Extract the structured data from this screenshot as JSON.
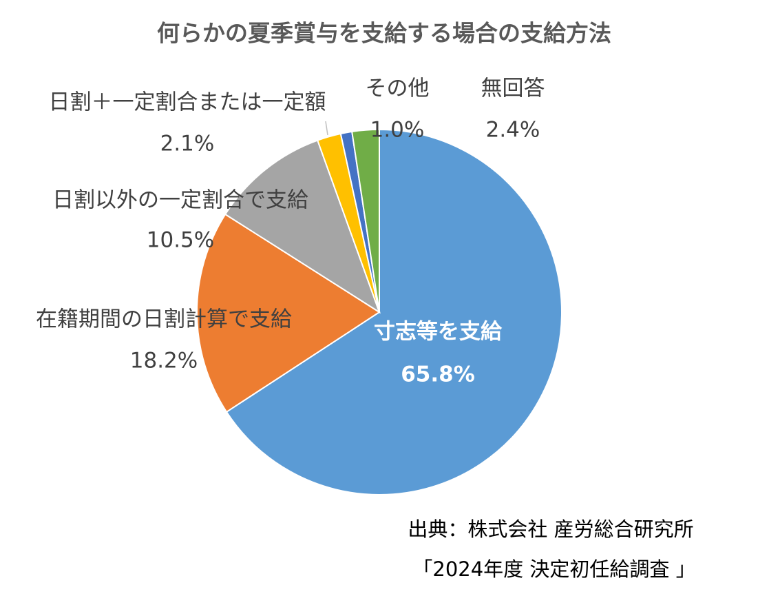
{
  "chart_data": {
    "type": "pie",
    "title": "何らかの夏季賞与を支給する場合の支給方法",
    "categories": [
      "寸志等を支給",
      "在籍期間の日割計算で支給",
      "日割以外の一定割合で支給",
      "日割＋一定割合または一定額",
      "その他",
      "無回答"
    ],
    "values": [
      65.8,
      18.2,
      10.5,
      2.1,
      1.0,
      2.4
    ],
    "value_labels": [
      "65.8%",
      "18.2%",
      "10.5%",
      "2.1%",
      "1.0%",
      "2.4%"
    ],
    "colors": [
      "#5b9bd5",
      "#ed7d31",
      "#a5a5a5",
      "#ffc000",
      "#4472c4",
      "#70ad47"
    ],
    "source": [
      "出典：株式会社 産労総合研究所",
      "「2024年度 決定初任給調査 」"
    ]
  }
}
